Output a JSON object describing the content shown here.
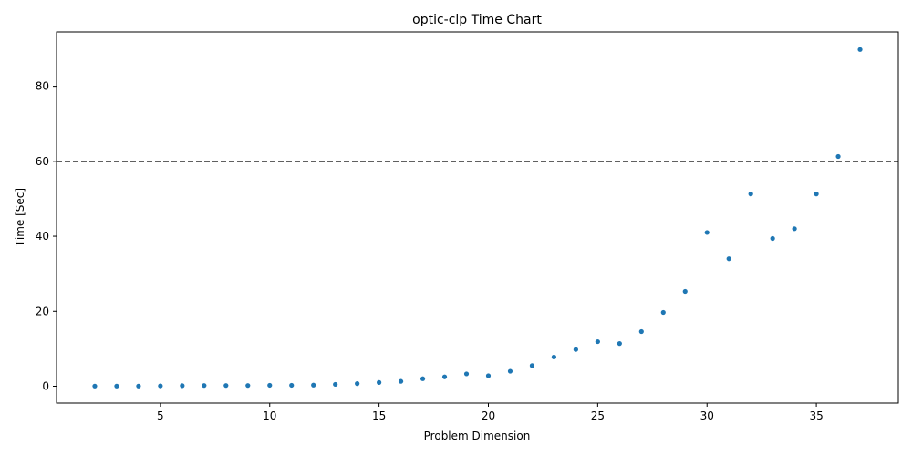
{
  "chart_data": {
    "type": "scatter",
    "title": "optic-clp Time Chart",
    "xlabel": "Problem Dimension",
    "ylabel": "Time [Sec]",
    "xlim": [
      0.25,
      38.75
    ],
    "ylim": [
      -4.5,
      94.5
    ],
    "xticks": [
      5,
      10,
      15,
      20,
      25,
      30,
      35
    ],
    "yticks": [
      0,
      20,
      40,
      60,
      80
    ],
    "grid": false,
    "reference_line": {
      "y": 60,
      "style": "dashed",
      "color": "#000000"
    },
    "marker_color": "#1f77b4",
    "x": [
      2,
      3,
      4,
      5,
      6,
      7,
      8,
      9,
      10,
      11,
      12,
      13,
      14,
      15,
      16,
      17,
      18,
      19,
      20,
      21,
      22,
      23,
      24,
      25,
      26,
      27,
      28,
      29,
      30,
      31,
      32,
      33,
      34,
      35,
      36,
      37
    ],
    "y": [
      0.05,
      0.05,
      0.05,
      0.1,
      0.15,
      0.2,
      0.2,
      0.2,
      0.25,
      0.25,
      0.3,
      0.5,
      0.7,
      1.0,
      1.3,
      2.0,
      2.5,
      3.3,
      2.8,
      4.0,
      5.5,
      7.8,
      9.8,
      11.9,
      11.4,
      14.6,
      19.7,
      25.3,
      41.0,
      34.0,
      51.3,
      39.4,
      42.0,
      51.3,
      61.3,
      89.8
    ]
  }
}
